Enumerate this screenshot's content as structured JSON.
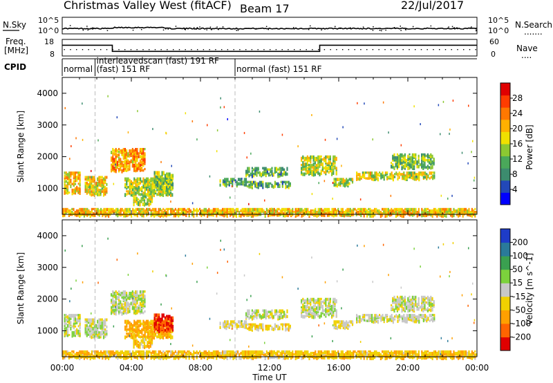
{
  "header": {
    "title": "Christmas Valley West (fitACF)",
    "beam": "Beam 17",
    "date": "22/Jul/2017"
  },
  "noise_panel": {
    "left_label": "N.Sky",
    "left_ticks": [
      "10^5",
      "10^0"
    ],
    "right_ticks": [
      "10^5",
      "10^0"
    ],
    "right_label": "N.Search",
    "right_legend": "......."
  },
  "freq_panel": {
    "left_label_1": "Freq.",
    "left_label_2": "[MHz]",
    "left_ticks": [
      "18",
      "8"
    ],
    "right_ticks": [
      "60",
      "0"
    ],
    "right_label": "Nave",
    "right_legend": "...."
  },
  "cpid_panel": {
    "label": "CPID",
    "segments": [
      {
        "start_hour": 0.0,
        "end_hour": 1.9,
        "lines": [
          "normal"
        ]
      },
      {
        "start_hour": 1.9,
        "end_hour": 10.0,
        "lines": [
          "interleavedscan (fast) 191 RF",
          "(fast) 151 RF"
        ]
      },
      {
        "start_hour": 10.0,
        "end_hour": 24.0,
        "lines": [
          "normal (fast) 151 RF"
        ]
      }
    ]
  },
  "power_panel": {
    "ylabel": "Slant Range [km]",
    "yticks": [
      "4000",
      "3000",
      "2000",
      "1000"
    ],
    "colorbar_label": "Power [dB]",
    "colorbar_ticks": [
      "28",
      "24",
      "20",
      "16",
      "12",
      "8",
      "4"
    ],
    "colors": [
      "#0000ff",
      "#2248b8",
      "#3c8c6e",
      "#4aa85a",
      "#8cc832",
      "#f0e000",
      "#ffb000",
      "#ff7800",
      "#ff3c00",
      "#e00000"
    ]
  },
  "velocity_panel": {
    "ylabel": "Slant Range [km]",
    "yticks": [
      "4000",
      "3000",
      "2000",
      "1000"
    ],
    "colorbar_label": "Velocity [m s^-1]",
    "colorbar_ticks": [
      "200",
      "100",
      "50",
      "15",
      "-15",
      "-50",
      "-100",
      "-200"
    ],
    "colors": [
      "#1e3cc8",
      "#2a7a9a",
      "#3aa050",
      "#7cd23c",
      "#c8c8c8",
      "#f0d000",
      "#ffa000",
      "#ff6400",
      "#e00000"
    ]
  },
  "x_axis": {
    "ticks": [
      "00:00",
      "04:00",
      "08:00",
      "12:00",
      "16:00",
      "20:00",
      "00:00"
    ],
    "label": "Time UT"
  },
  "chart_data": {
    "type": "heatmap",
    "title": "Christmas Valley West (fitACF)",
    "subtitle": "Beam 17",
    "xlabel": "Time UT",
    "ylabel": "Slant Range [km]",
    "xlim_hours": [
      0,
      24
    ],
    "ylim_km": [
      180,
      4500
    ],
    "panels": [
      "Power [dB]",
      "Velocity [m s^-1]"
    ],
    "frequency_steps": [
      {
        "from_hour": 0.0,
        "to_hour": 2.9,
        "freq_mhz": 14.5
      },
      {
        "from_hour": 2.9,
        "to_hour": 14.9,
        "freq_mhz": 10.8
      },
      {
        "from_hour": 14.9,
        "to_hour": 24.0,
        "freq_mhz": 14.5
      }
    ],
    "echo_regions": [
      {
        "t0": 0.1,
        "t1": 1.0,
        "r0": 900,
        "r1": 1550,
        "power_db": 18,
        "velocity": 0
      },
      {
        "t0": 1.3,
        "t1": 2.6,
        "r0": 850,
        "r1": 1400,
        "power_db": 16,
        "velocity": 0
      },
      {
        "t0": 2.8,
        "t1": 4.8,
        "r0": 1600,
        "r1": 2300,
        "power_db": 20,
        "velocity": 0
      },
      {
        "t0": 3.6,
        "t1": 6.4,
        "r0": 850,
        "r1": 1350,
        "power_db": 14,
        "velocity": -60
      },
      {
        "t0": 4.1,
        "t1": 5.2,
        "r0": 550,
        "r1": 800,
        "power_db": 14,
        "velocity": -40
      },
      {
        "t0": 5.3,
        "t1": 6.4,
        "r0": 1050,
        "r1": 1550,
        "power_db": 12,
        "velocity": -200
      },
      {
        "t0": 9.1,
        "t1": 10.6,
        "r0": 1150,
        "r1": 1350,
        "power_db": 10,
        "velocity": -15
      },
      {
        "t0": 10.6,
        "t1": 13.2,
        "r0": 1100,
        "r1": 1250,
        "power_db": 10,
        "velocity": -30
      },
      {
        "t0": 10.6,
        "t1": 13.0,
        "r0": 1450,
        "r1": 1700,
        "power_db": 10,
        "velocity": 0
      },
      {
        "t0": 13.8,
        "t1": 15.9,
        "r0": 1500,
        "r1": 2050,
        "power_db": 14,
        "velocity": 0
      },
      {
        "t0": 15.7,
        "t1": 16.8,
        "r0": 1150,
        "r1": 1350,
        "power_db": 14,
        "velocity": -20
      },
      {
        "t0": 17.0,
        "t1": 21.5,
        "r0": 1350,
        "r1": 1550,
        "power_db": 15,
        "velocity": 0
      },
      {
        "t0": 19.0,
        "t1": 21.5,
        "r0": 1700,
        "r1": 2150,
        "power_db": 11,
        "velocity": 0
      },
      {
        "t0": 0.0,
        "t1": 24.0,
        "r0": 200,
        "r1": 400,
        "power_db": 18,
        "velocity": -40
      }
    ]
  }
}
